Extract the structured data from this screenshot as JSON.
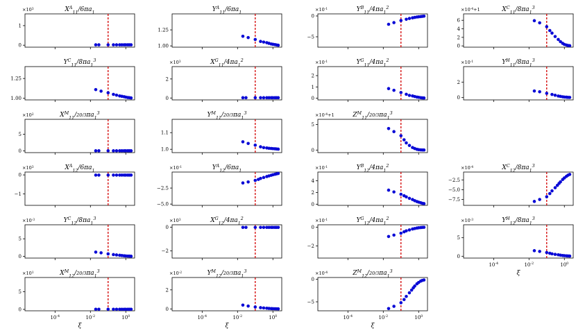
{
  "figure": {
    "colors": {
      "points": "#0a0ad6",
      "reference_line": "#d40000",
      "axes": "#000000"
    },
    "x_ticks": [
      "10^{-4}",
      "10^{-2}",
      "10^{0}"
    ],
    "x_label": "ξ"
  },
  "chart_data": [
    {
      "id": "X11A",
      "type": "scatter",
      "title": "X^A_{11}/6πa_1",
      "multiplier": "×10^3",
      "yticks": [
        "0",
        "1"
      ],
      "ylim": [
        -0.1,
        1.6
      ],
      "reference_x": 0.1,
      "x": [
        0.02,
        0.03,
        0.1,
        0.2,
        0.3,
        0.45,
        0.6,
        0.8,
        1.0,
        1.3,
        1.6,
        2.0
      ],
      "y": [
        0.02,
        0.02,
        0.02,
        0.02,
        0.02,
        0.02,
        0.02,
        0.02,
        0.02,
        0.02,
        0.02,
        0.02
      ]
    },
    {
      "id": "Y11A",
      "type": "scatter",
      "title": "Y^A_{11}/6πa_1",
      "multiplier": "",
      "yticks": [
        "1.00",
        "1.25"
      ],
      "ylim": [
        0.98,
        1.5
      ],
      "reference_x": 0.1,
      "x": [
        0.02,
        0.04,
        0.1,
        0.2,
        0.3,
        0.45,
        0.6,
        0.8,
        1.0,
        1.3,
        1.6,
        2.0
      ],
      "y": [
        1.15,
        1.13,
        1.1,
        1.07,
        1.06,
        1.05,
        1.04,
        1.03,
        1.025,
        1.02,
        1.015,
        1.01
      ]
    },
    {
      "id": "Y11B",
      "type": "scatter",
      "title": "Y^B_{11}/4πa_1^2",
      "multiplier": "×10^{-1}",
      "yticks": [
        "−5",
        "0"
      ],
      "ylim": [
        -7.5,
        0.5
      ],
      "reference_x": 0.1,
      "x": [
        0.02,
        0.04,
        0.1,
        0.2,
        0.3,
        0.45,
        0.6,
        0.8,
        1.0,
        1.3,
        1.6,
        2.0
      ],
      "y": [
        -2.0,
        -1.6,
        -1.1,
        -0.8,
        -0.6,
        -0.45,
        -0.35,
        -0.25,
        -0.2,
        -0.15,
        -0.1,
        -0.05
      ]
    },
    {
      "id": "X11C",
      "type": "scatter",
      "title": "X^C_{11}/8πa_1^3",
      "multiplier": "×10^{-4}+1",
      "yticks": [
        "0",
        "2",
        "4",
        "6"
      ],
      "ylim": [
        -0.3,
        7.5
      ],
      "reference_x": 0.1,
      "x": [
        0.02,
        0.04,
        0.1,
        0.15,
        0.2,
        0.3,
        0.45,
        0.6,
        0.8,
        1.0,
        1.3,
        1.6,
        2.0
      ],
      "y": [
        5.9,
        5.4,
        4.5,
        3.6,
        3.0,
        2.2,
        1.5,
        1.0,
        0.6,
        0.35,
        0.2,
        0.1,
        0.05
      ]
    },
    {
      "id": "Y11C",
      "type": "scatter",
      "title": "Y^C_{11}/8πa_1^3",
      "multiplier": "",
      "yticks": [
        "1.00",
        "1.25"
      ],
      "ylim": [
        0.98,
        1.4
      ],
      "reference_x": 0.1,
      "x": [
        0.02,
        0.04,
        0.1,
        0.2,
        0.3,
        0.45,
        0.6,
        0.8,
        1.0,
        1.3,
        1.6,
        2.0
      ],
      "y": [
        1.11,
        1.09,
        1.07,
        1.05,
        1.04,
        1.03,
        1.025,
        1.02,
        1.015,
        1.01,
        1.008,
        1.005
      ]
    },
    {
      "id": "X11G",
      "type": "scatter",
      "title": "X^G_{11}/4πa_1^2",
      "multiplier": "×10^3",
      "yticks": [
        "0",
        "2"
      ],
      "ylim": [
        -0.2,
        3.3
      ],
      "reference_x": 0.1,
      "x": [
        0.02,
        0.03,
        0.1,
        0.2,
        0.3,
        0.45,
        0.6,
        0.8,
        1.0,
        1.3,
        1.6,
        2.0
      ],
      "y": [
        0.03,
        0.03,
        0.03,
        0.03,
        0.03,
        0.03,
        0.03,
        0.03,
        0.03,
        0.03,
        0.03,
        0.03
      ]
    },
    {
      "id": "Y11G",
      "type": "scatter",
      "title": "Y^G_{11}/4πa_1^2",
      "multiplier": "×10^{-1}",
      "yticks": [
        "0",
        "1",
        "2"
      ],
      "ylim": [
        -0.15,
        2.8
      ],
      "reference_x": 0.1,
      "x": [
        0.02,
        0.04,
        0.1,
        0.2,
        0.3,
        0.45,
        0.6,
        0.8,
        1.0,
        1.3,
        1.6,
        2.0
      ],
      "y": [
        0.85,
        0.7,
        0.5,
        0.35,
        0.25,
        0.2,
        0.15,
        0.1,
        0.08,
        0.05,
        0.03,
        0.02
      ]
    },
    {
      "id": "Y11H",
      "type": "scatter",
      "title": "Y^H_{11}/8πa_1^3",
      "multiplier": "×10^{-1}",
      "yticks": [
        "0",
        "2"
      ],
      "ylim": [
        -0.3,
        4.0
      ],
      "reference_x": 0.1,
      "x": [
        0.02,
        0.04,
        0.1,
        0.2,
        0.3,
        0.45,
        0.6,
        0.8,
        1.0,
        1.3,
        1.6,
        2.0
      ],
      "y": [
        0.85,
        0.75,
        0.55,
        0.4,
        0.3,
        0.2,
        0.15,
        0.1,
        0.07,
        0.05,
        0.03,
        0.02
      ]
    },
    {
      "id": "X11M",
      "type": "scatter",
      "title": "X^M_{11}/\\frac{20}{3}πa_1^3",
      "multiplier": "×10^2",
      "yticks": [
        "0",
        "5"
      ],
      "ylim": [
        -0.5,
        9.5
      ],
      "reference_x": 0.1,
      "x": [
        0.02,
        0.03,
        0.1,
        0.2,
        0.3,
        0.45,
        0.6,
        0.8,
        1.0,
        1.3,
        1.6,
        2.0
      ],
      "y": [
        0.05,
        0.05,
        0.05,
        0.05,
        0.05,
        0.05,
        0.05,
        0.05,
        0.05,
        0.05,
        0.05,
        0.05
      ]
    },
    {
      "id": "Y11M",
      "type": "scatter",
      "title": "Y^M_{11}/\\frac{20}{3}πa_1^3",
      "multiplier": "",
      "yticks": [
        "1.0",
        "1.1"
      ],
      "ylim": [
        0.98,
        1.18
      ],
      "reference_x": 0.1,
      "x": [
        0.02,
        0.04,
        0.1,
        0.2,
        0.3,
        0.45,
        0.6,
        0.8,
        1.0,
        1.3,
        1.6,
        2.0
      ],
      "y": [
        1.045,
        1.035,
        1.025,
        1.015,
        1.01,
        1.008,
        1.006,
        1.005,
        1.004,
        1.003,
        1.002,
        1.001
      ]
    },
    {
      "id": "Z11M",
      "type": "scatter",
      "title": "Z^M_{11}/\\frac{20}{3}πa_1^3",
      "multiplier": "×10^{-4}+1",
      "yticks": [
        "0",
        "5"
      ],
      "ylim": [
        -0.5,
        6.0
      ],
      "reference_x": 0.1,
      "x": [
        0.02,
        0.04,
        0.1,
        0.15,
        0.2,
        0.3,
        0.45,
        0.6,
        0.8,
        1.0,
        1.3,
        1.6,
        2.0
      ],
      "y": [
        4.2,
        3.6,
        2.8,
        2.0,
        1.4,
        0.9,
        0.5,
        0.3,
        0.15,
        0.08,
        0.04,
        0.02,
        0.01
      ]
    },
    null,
    {
      "id": "X12A",
      "type": "scatter",
      "title": "X^A_{12}/6πa_1",
      "multiplier": "×10^3",
      "yticks": [
        "−1",
        "0"
      ],
      "ylim": [
        -1.6,
        0.15
      ],
      "reference_x": 0.1,
      "x": [
        0.02,
        0.03,
        0.1,
        0.2,
        0.3,
        0.45,
        0.6,
        0.8,
        1.0,
        1.3,
        1.6,
        2.0
      ],
      "y": [
        -0.01,
        -0.01,
        -0.01,
        -0.01,
        -0.01,
        -0.01,
        -0.01,
        -0.01,
        -0.01,
        -0.01,
        -0.01,
        -0.01
      ]
    },
    {
      "id": "Y12A",
      "type": "scatter",
      "title": "Y^A_{12}/6πa_1",
      "multiplier": "×10^{-1}",
      "yticks": [
        "−5.0",
        "−2.5"
      ],
      "ylim": [
        -5.2,
        0.0
      ],
      "reference_x": 0.1,
      "x": [
        0.02,
        0.04,
        0.1,
        0.15,
        0.2,
        0.3,
        0.45,
        0.6,
        0.8,
        1.0,
        1.3,
        1.6,
        2.0
      ],
      "y": [
        -1.7,
        -1.55,
        -1.3,
        -1.15,
        -1.0,
        -0.85,
        -0.7,
        -0.6,
        -0.5,
        -0.42,
        -0.35,
        -0.28,
        -0.22
      ]
    },
    {
      "id": "Y12B",
      "type": "scatter",
      "title": "Y^B_{12}/4πa_1^2",
      "multiplier": "×10^{-1}",
      "yticks": [
        "0",
        "2",
        "4"
      ],
      "ylim": [
        -0.2,
        5.5
      ],
      "reference_x": 0.1,
      "x": [
        0.02,
        0.04,
        0.1,
        0.15,
        0.2,
        0.3,
        0.45,
        0.6,
        0.8,
        1.0,
        1.3,
        1.6,
        2.0
      ],
      "y": [
        2.4,
        2.1,
        1.7,
        1.45,
        1.25,
        1.0,
        0.8,
        0.6,
        0.45,
        0.35,
        0.25,
        0.15,
        0.1
      ]
    },
    {
      "id": "X12C",
      "type": "scatter",
      "title": "X^C_{12}/8πa_1^3",
      "multiplier": "×10^{-4}",
      "yticks": [
        "−7.5",
        "−5.0",
        "−2.5"
      ],
      "ylim": [
        -9.0,
        -0.5
      ],
      "reference_x": 0.1,
      "x": [
        0.02,
        0.04,
        0.1,
        0.15,
        0.2,
        0.3,
        0.4,
        0.5,
        0.6,
        0.8,
        1.0,
        1.3,
        1.6,
        2.0
      ],
      "y": [
        -8.0,
        -7.5,
        -6.8,
        -6.0,
        -5.3,
        -4.5,
        -3.9,
        -3.4,
        -3.0,
        -2.4,
        -2.0,
        -1.6,
        -1.3,
        -1.1
      ]
    },
    {
      "id": "Y12C",
      "type": "scatter",
      "title": "Y^C_{12}/8πa_1^3",
      "multiplier": "×10^{-3}",
      "yticks": [
        "0",
        "5"
      ],
      "ylim": [
        -0.5,
        9.0
      ],
      "reference_x": 0.1,
      "x": [
        0.02,
        0.04,
        0.1,
        0.2,
        0.3,
        0.45,
        0.6,
        0.8,
        1.0,
        1.3,
        1.6,
        2.0
      ],
      "y": [
        1.2,
        1.0,
        0.7,
        0.5,
        0.4,
        0.3,
        0.22,
        0.15,
        0.1,
        0.07,
        0.05,
        0.03
      ]
    },
    {
      "id": "X12G",
      "type": "scatter",
      "title": "X^G_{12}/4πa_1^2",
      "multiplier": "×10^3",
      "yticks": [
        "−2",
        "0"
      ],
      "ylim": [
        -2.6,
        0.2
      ],
      "reference_x": 0.1,
      "x": [
        0.02,
        0.03,
        0.1,
        0.2,
        0.3,
        0.45,
        0.6,
        0.8,
        1.0,
        1.3,
        1.6,
        2.0
      ],
      "y": [
        -0.02,
        -0.02,
        -0.02,
        -0.02,
        -0.02,
        -0.02,
        -0.02,
        -0.02,
        -0.02,
        -0.02,
        -0.02,
        -0.02
      ]
    },
    {
      "id": "Y12G",
      "type": "scatter",
      "title": "Y^G_{12}/4πa_1^2",
      "multiplier": "×10^{-1}",
      "yticks": [
        "−2",
        "0"
      ],
      "ylim": [
        -3.3,
        0.25
      ],
      "reference_x": 0.1,
      "x": [
        0.02,
        0.04,
        0.1,
        0.15,
        0.2,
        0.3,
        0.45,
        0.6,
        0.8,
        1.0,
        1.3,
        1.6,
        2.0
      ],
      "y": [
        -1.0,
        -0.85,
        -0.65,
        -0.5,
        -0.4,
        -0.3,
        -0.2,
        -0.15,
        -0.1,
        -0.07,
        -0.05,
        -0.03,
        -0.02
      ]
    },
    {
      "id": "Y12H",
      "type": "scatter",
      "title": "Y^H_{12}/8πa_1^3",
      "multiplier": "×10^{-3}",
      "yticks": [
        "0",
        "5"
      ],
      "ylim": [
        -0.5,
        8.5
      ],
      "reference_x": 0.1,
      "x": [
        0.02,
        0.04,
        0.1,
        0.15,
        0.2,
        0.3,
        0.45,
        0.6,
        0.8,
        1.0,
        1.3,
        1.6,
        2.0
      ],
      "y": [
        1.5,
        1.3,
        1.0,
        0.8,
        0.65,
        0.5,
        0.38,
        0.28,
        0.2,
        0.15,
        0.1,
        0.07,
        0.05
      ]
    },
    {
      "id": "X12M",
      "type": "scatter",
      "title": "X^M_{12}/\\frac{20}{3}πa_1^3",
      "multiplier": "×10^1",
      "yticks": [
        "0",
        "5"
      ],
      "ylim": [
        -0.4,
        9.0
      ],
      "reference_x": 0.1,
      "x": [
        0.02,
        0.03,
        0.1,
        0.2,
        0.3,
        0.45,
        0.6,
        0.8,
        1.0,
        1.3,
        1.6,
        2.0
      ],
      "y": [
        0.03,
        0.03,
        0.03,
        0.03,
        0.03,
        0.03,
        0.03,
        0.03,
        0.03,
        0.03,
        0.03,
        0.03
      ]
    },
    {
      "id": "Y12M",
      "type": "scatter",
      "title": "Y^M_{12}/\\frac{20}{3}πa_1^3",
      "multiplier": "×10^{-2}",
      "yticks": [
        "0",
        "2"
      ],
      "ylim": [
        -0.2,
        3.3
      ],
      "reference_x": 0.1,
      "x": [
        0.02,
        0.04,
        0.1,
        0.2,
        0.3,
        0.45,
        0.6,
        0.8,
        1.0,
        1.3,
        1.6,
        2.0
      ],
      "y": [
        0.4,
        0.3,
        0.2,
        0.13,
        0.1,
        0.07,
        0.05,
        0.03,
        0.02,
        0.015,
        0.01,
        0.005
      ]
    },
    {
      "id": "Z12M",
      "type": "scatter",
      "title": "Z^M_{12}/\\frac{20}{3}πa_1^3",
      "multiplier": "×10^{-4}",
      "yticks": [
        "−5",
        "0"
      ],
      "ylim": [
        -7.0,
        0.4
      ],
      "reference_x": 0.1,
      "x": [
        0.02,
        0.04,
        0.1,
        0.15,
        0.2,
        0.3,
        0.4,
        0.5,
        0.6,
        0.8,
        1.0,
        1.3,
        1.6,
        2.0
      ],
      "y": [
        -6.5,
        -6.0,
        -5.2,
        -4.5,
        -3.8,
        -3.0,
        -2.4,
        -1.9,
        -1.5,
        -1.0,
        -0.7,
        -0.4,
        -0.25,
        -0.15
      ]
    },
    null
  ]
}
